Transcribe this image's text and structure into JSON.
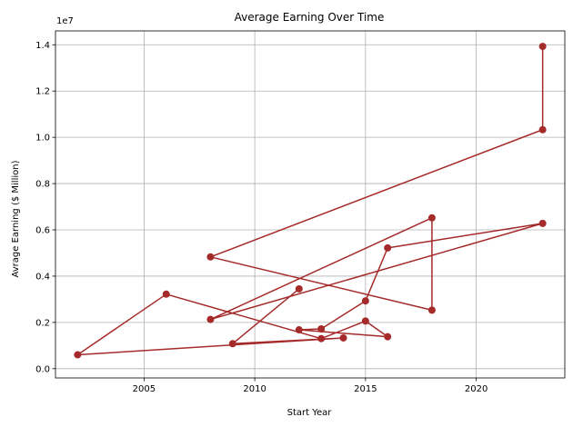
{
  "chart_data": {
    "type": "line",
    "title": "Average Earning Over Time",
    "xlabel": "Start Year",
    "ylabel": "Avrage Earning ($ Million)",
    "y_offset_text": "1e7",
    "x_ticks": [
      2005,
      2010,
      2015,
      2020
    ],
    "y_ticks": [
      0.0,
      0.2,
      0.4,
      0.6,
      0.8,
      1.0,
      1.2,
      1.4
    ],
    "y_tick_labels": [
      "0.0",
      "0.2",
      "0.4",
      "0.6",
      "0.8",
      "1.0",
      "1.2",
      "1.4"
    ],
    "xlim": [
      2001.0,
      2024.0
    ],
    "ylim": [
      -0.04,
      1.46
    ],
    "grid": true,
    "series": [
      {
        "color": "#a52a2a",
        "marker": "circle",
        "points": [
          {
            "x": 2023,
            "y": 1.393
          },
          {
            "x": 2023,
            "y": 1.033
          },
          {
            "x": 2008,
            "y": 0.483
          },
          {
            "x": 2018,
            "y": 0.253
          },
          {
            "x": 2018,
            "y": 0.652
          },
          {
            "x": 2008,
            "y": 0.213
          },
          {
            "x": 2023,
            "y": 0.628
          },
          {
            "x": 2016,
            "y": 0.522
          },
          {
            "x": 2015,
            "y": 0.293
          },
          {
            "x": 2013,
            "y": 0.172
          },
          {
            "x": 2012,
            "y": 0.168
          },
          {
            "x": 2016,
            "y": 0.138
          },
          {
            "x": 2015,
            "y": 0.206
          },
          {
            "x": 2013,
            "y": 0.13
          },
          {
            "x": 2006,
            "y": 0.322
          },
          {
            "x": 2002,
            "y": 0.06
          },
          {
            "x": 2014,
            "y": 0.133
          },
          {
            "x": 2009,
            "y": 0.108
          },
          {
            "x": 2012,
            "y": 0.345
          }
        ]
      }
    ]
  }
}
